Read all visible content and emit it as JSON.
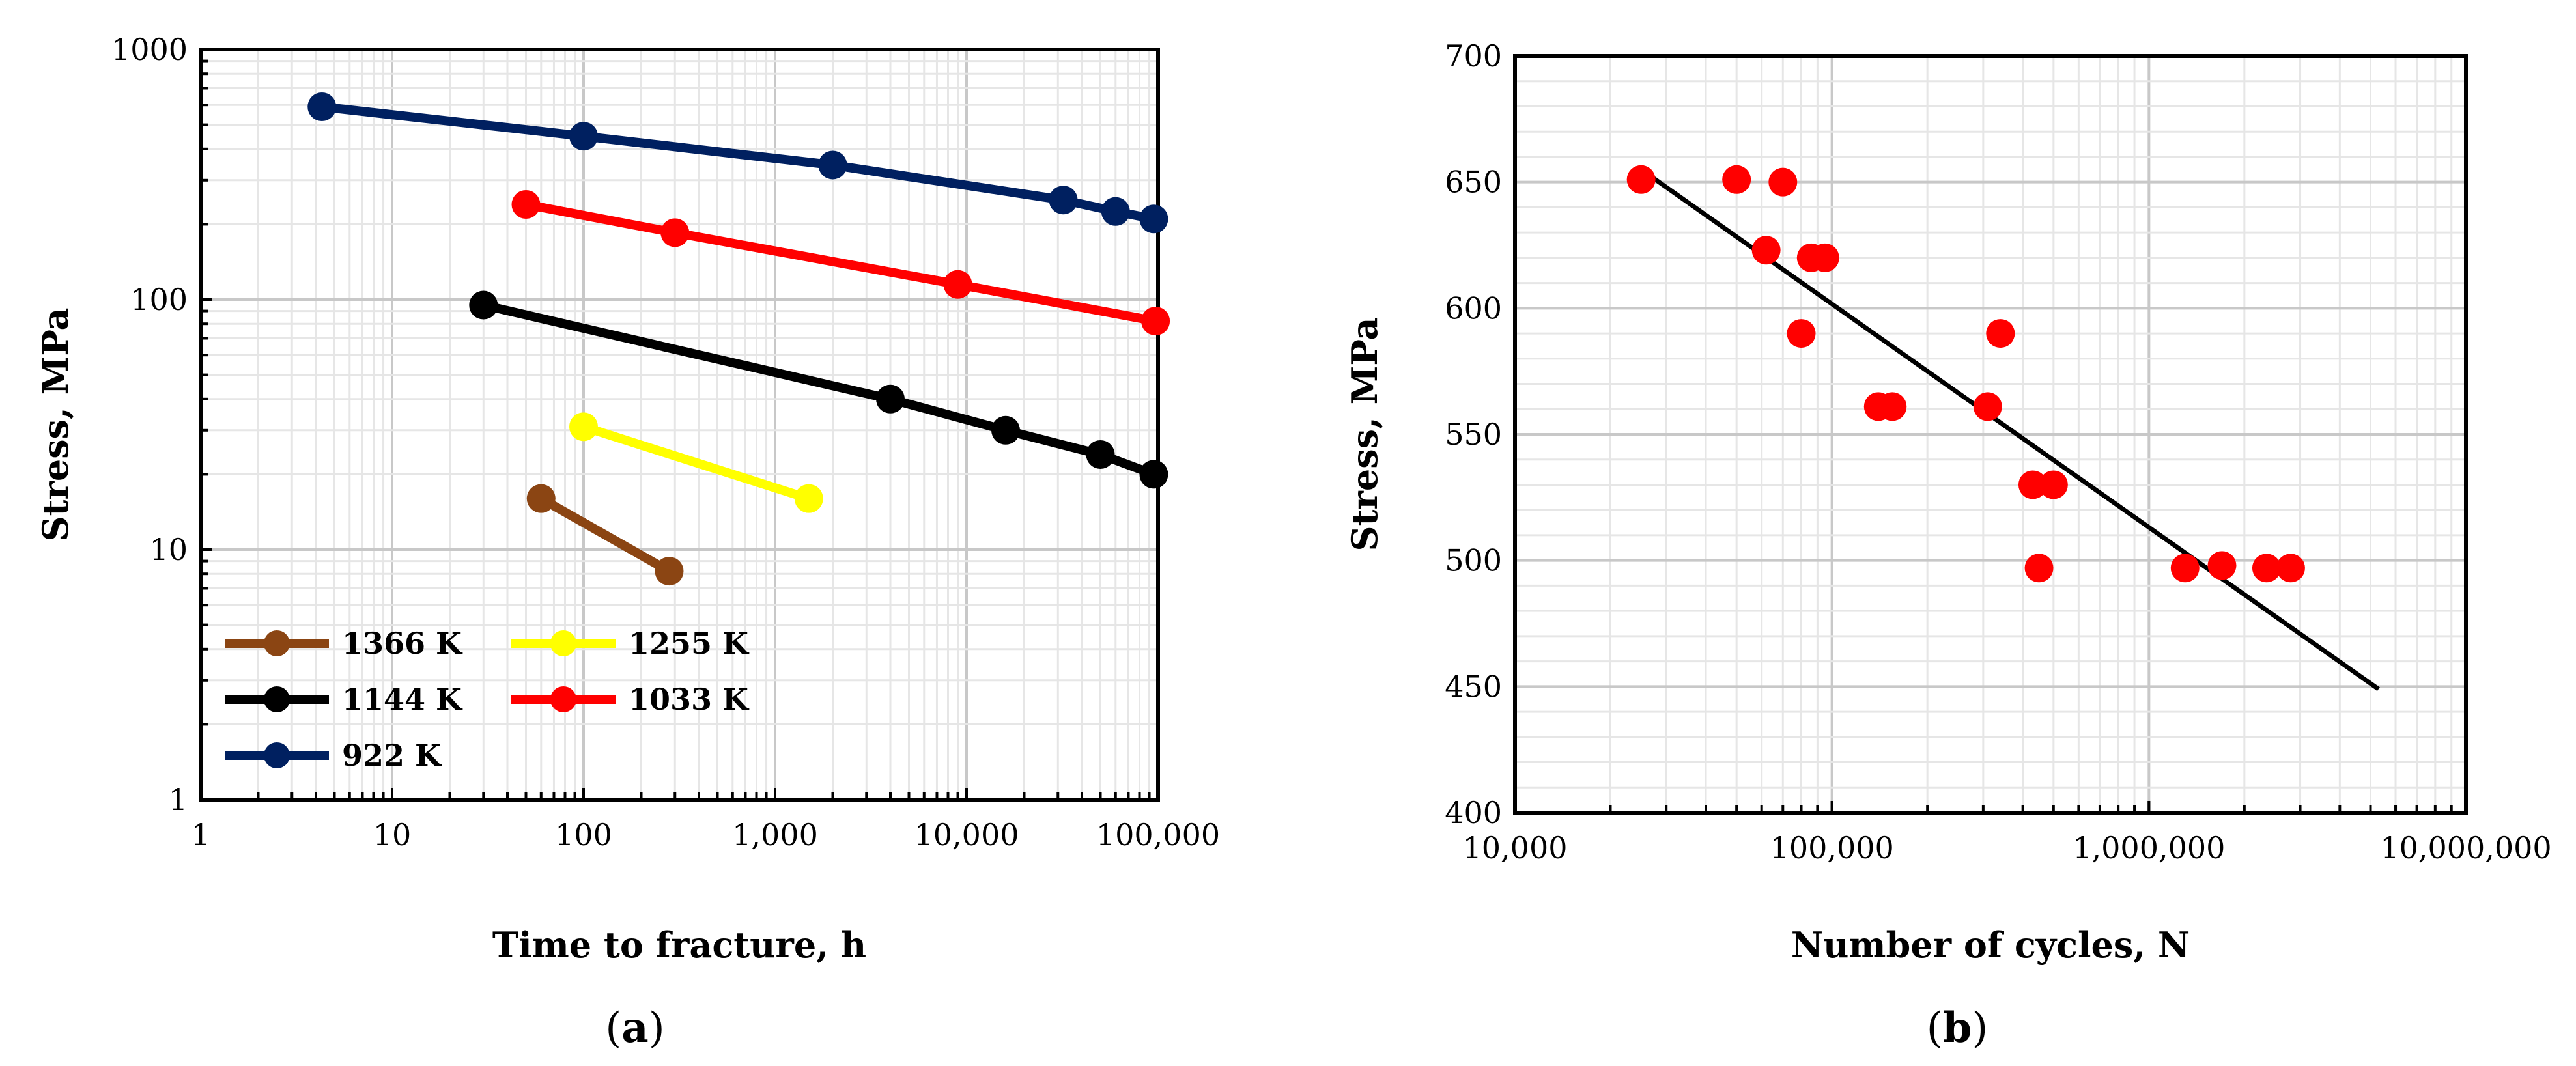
{
  "panels": [
    {
      "caption_letter": "a",
      "chart_data": {
        "type": "line",
        "xscale": "log",
        "yscale": "log",
        "xlabel": "Time to fracture, h",
        "ylabel": "Stress, MPa",
        "xlim": [
          1,
          100000
        ],
        "ylim": [
          1,
          1000
        ],
        "x_ticks": [
          1,
          10,
          100,
          1000,
          10000,
          100000
        ],
        "x_tick_labels": [
          "1",
          "10",
          "100",
          "1,000",
          "10,000",
          "100,000"
        ],
        "y_ticks": [
          1,
          10,
          100,
          1000
        ],
        "y_tick_labels": [
          "1",
          "10",
          "100",
          "1000"
        ],
        "grid": true,
        "legend_position": "bottom-left",
        "series": [
          {
            "name": "1366 K",
            "color": "#8B4513",
            "x": [
              60,
              280
            ],
            "y": [
              16,
              8.2
            ]
          },
          {
            "name": "1255 K",
            "color": "#FFFF00",
            "x": [
              100,
              1500
            ],
            "y": [
              31,
              16
            ]
          },
          {
            "name": "1144 K",
            "color": "#000000",
            "x": [
              30,
              4000,
              16000,
              50000,
              95000
            ],
            "y": [
              95,
              40,
              30,
              24,
              20
            ]
          },
          {
            "name": "1033 K",
            "color": "#FF0000",
            "x": [
              50,
              300,
              9000,
              97000
            ],
            "y": [
              240,
              185,
              115,
              82
            ]
          },
          {
            "name": "922 K",
            "color": "#002060",
            "x": [
              4.3,
              100,
              2000,
              32000,
              60000,
              95000
            ],
            "y": [
              590,
              450,
              345,
              250,
              225,
              210
            ]
          }
        ]
      }
    },
    {
      "caption_letter": "b",
      "chart_data": {
        "type": "scatter",
        "xscale": "log",
        "yscale": "linear",
        "xlabel": "Number of cycles, N",
        "ylabel": "Stress, MPa",
        "xlim": [
          10000,
          10000000
        ],
        "ylim": [
          400,
          700
        ],
        "x_ticks": [
          10000,
          100000,
          1000000,
          10000000
        ],
        "x_tick_labels": [
          "10,000",
          "100,000",
          "1,000,000",
          "10,000,000"
        ],
        "y_ticks": [
          400,
          450,
          500,
          550,
          600,
          650,
          700
        ],
        "y_tick_labels": [
          "400",
          "450",
          "500",
          "550",
          "600",
          "650",
          "700"
        ],
        "grid": true,
        "point_color": "#FF0000",
        "line_color": "#000000",
        "points": [
          {
            "x": 25000,
            "y": 651
          },
          {
            "x": 50000,
            "y": 651
          },
          {
            "x": 70000,
            "y": 650
          },
          {
            "x": 62000,
            "y": 623
          },
          {
            "x": 86000,
            "y": 620
          },
          {
            "x": 95000,
            "y": 620
          },
          {
            "x": 80000,
            "y": 590
          },
          {
            "x": 140000,
            "y": 561
          },
          {
            "x": 155000,
            "y": 561
          },
          {
            "x": 310000,
            "y": 561
          },
          {
            "x": 340000,
            "y": 590
          },
          {
            "x": 430000,
            "y": 530
          },
          {
            "x": 500000,
            "y": 530
          },
          {
            "x": 450000,
            "y": 497
          },
          {
            "x": 1300000,
            "y": 497
          },
          {
            "x": 1700000,
            "y": 498
          },
          {
            "x": 2350000,
            "y": 497
          },
          {
            "x": 2800000,
            "y": 497
          }
        ],
        "fit_line": {
          "x": [
            25000,
            5300000
          ],
          "y": [
            655,
            449
          ]
        }
      }
    }
  ]
}
